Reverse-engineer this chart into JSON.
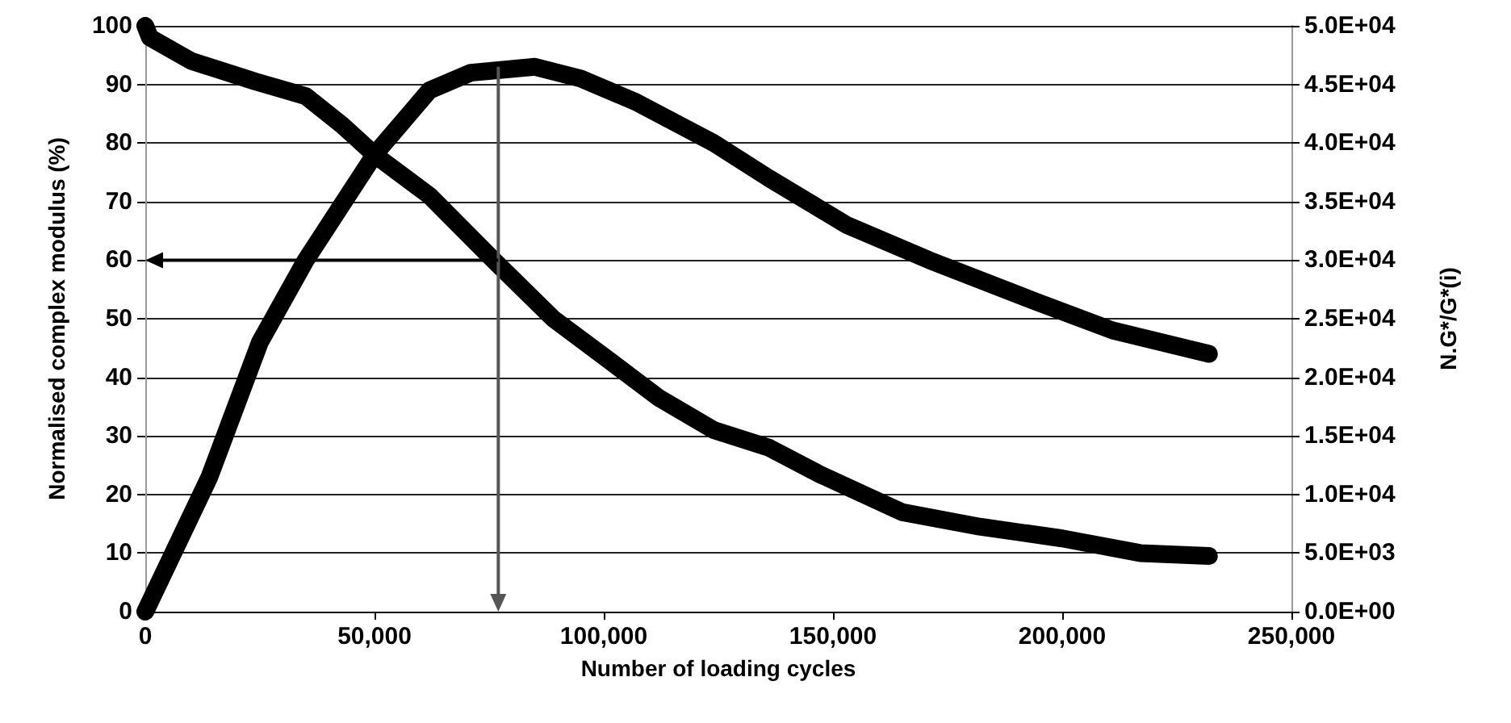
{
  "chart_data": {
    "type": "line",
    "xlabel": "Number of loading cycles",
    "ylabel": "Normalised complex modulus (%)",
    "y2label": "N.G*/G*(i)",
    "xlim": [
      0,
      250000
    ],
    "xticks": [
      {
        "value": 0,
        "label": "0"
      },
      {
        "value": 50000,
        "label": "50,000"
      },
      {
        "value": 100000,
        "label": "100,000"
      },
      {
        "value": 150000,
        "label": "150,000"
      },
      {
        "value": 200000,
        "label": "200,000"
      },
      {
        "value": 250000,
        "label": "250,000"
      }
    ],
    "ylim": [
      0,
      100
    ],
    "yticks": [
      0,
      10,
      20,
      30,
      40,
      50,
      60,
      70,
      80,
      90,
      100
    ],
    "y2lim": [
      0,
      50000
    ],
    "y2ticks": [
      {
        "value": 0,
        "label": "0.0E+00"
      },
      {
        "value": 5000,
        "label": "5.0E+03"
      },
      {
        "value": 10000,
        "label": "1.0E+04"
      },
      {
        "value": 15000,
        "label": "1.5E+04"
      },
      {
        "value": 20000,
        "label": "2.0E+04"
      },
      {
        "value": 25000,
        "label": "2.5E+04"
      },
      {
        "value": 30000,
        "label": "3.0E+04"
      },
      {
        "value": 35000,
        "label": "3.5E+04"
      },
      {
        "value": 40000,
        "label": "4.0E+04"
      },
      {
        "value": 45000,
        "label": "4.5E+04"
      },
      {
        "value": 50000,
        "label": "5.0E+04"
      }
    ],
    "grid": "y",
    "line_style": "solid",
    "series": [
      {
        "color": "#000000",
        "x": [
          0,
          1000,
          10000,
          24000,
          35000,
          43000,
          50000,
          62000,
          76000,
          89000,
          101000,
          112000,
          124000,
          136000,
          147000,
          165000,
          182000,
          200000,
          217000,
          232000
        ],
        "values": [
          100,
          98,
          94,
          90.5,
          88,
          83,
          78,
          71,
          60,
          50,
          43,
          36.5,
          31,
          28,
          23.5,
          17,
          14.5,
          12.5,
          10,
          9.5
        ]
      },
      {
        "color": "#000000",
        "axis": "y2",
        "x": [
          0,
          14000,
          25000,
          35000,
          50000,
          62000,
          71000,
          85000,
          95000,
          107000,
          124000,
          136000,
          153000,
          171000,
          194000,
          211000,
          232000
        ],
        "values": [
          0,
          11500,
          23000,
          30000,
          39000,
          44500,
          46000,
          46500,
          45500,
          43500,
          40000,
          37000,
          33000,
          30000,
          26500,
          24000,
          22000
        ]
      }
    ],
    "ref_lines": [
      {
        "axis": "x",
        "value": 77000,
        "color": "#555555"
      },
      {
        "axis": "y",
        "value": 60,
        "color": "#000000"
      }
    ]
  }
}
